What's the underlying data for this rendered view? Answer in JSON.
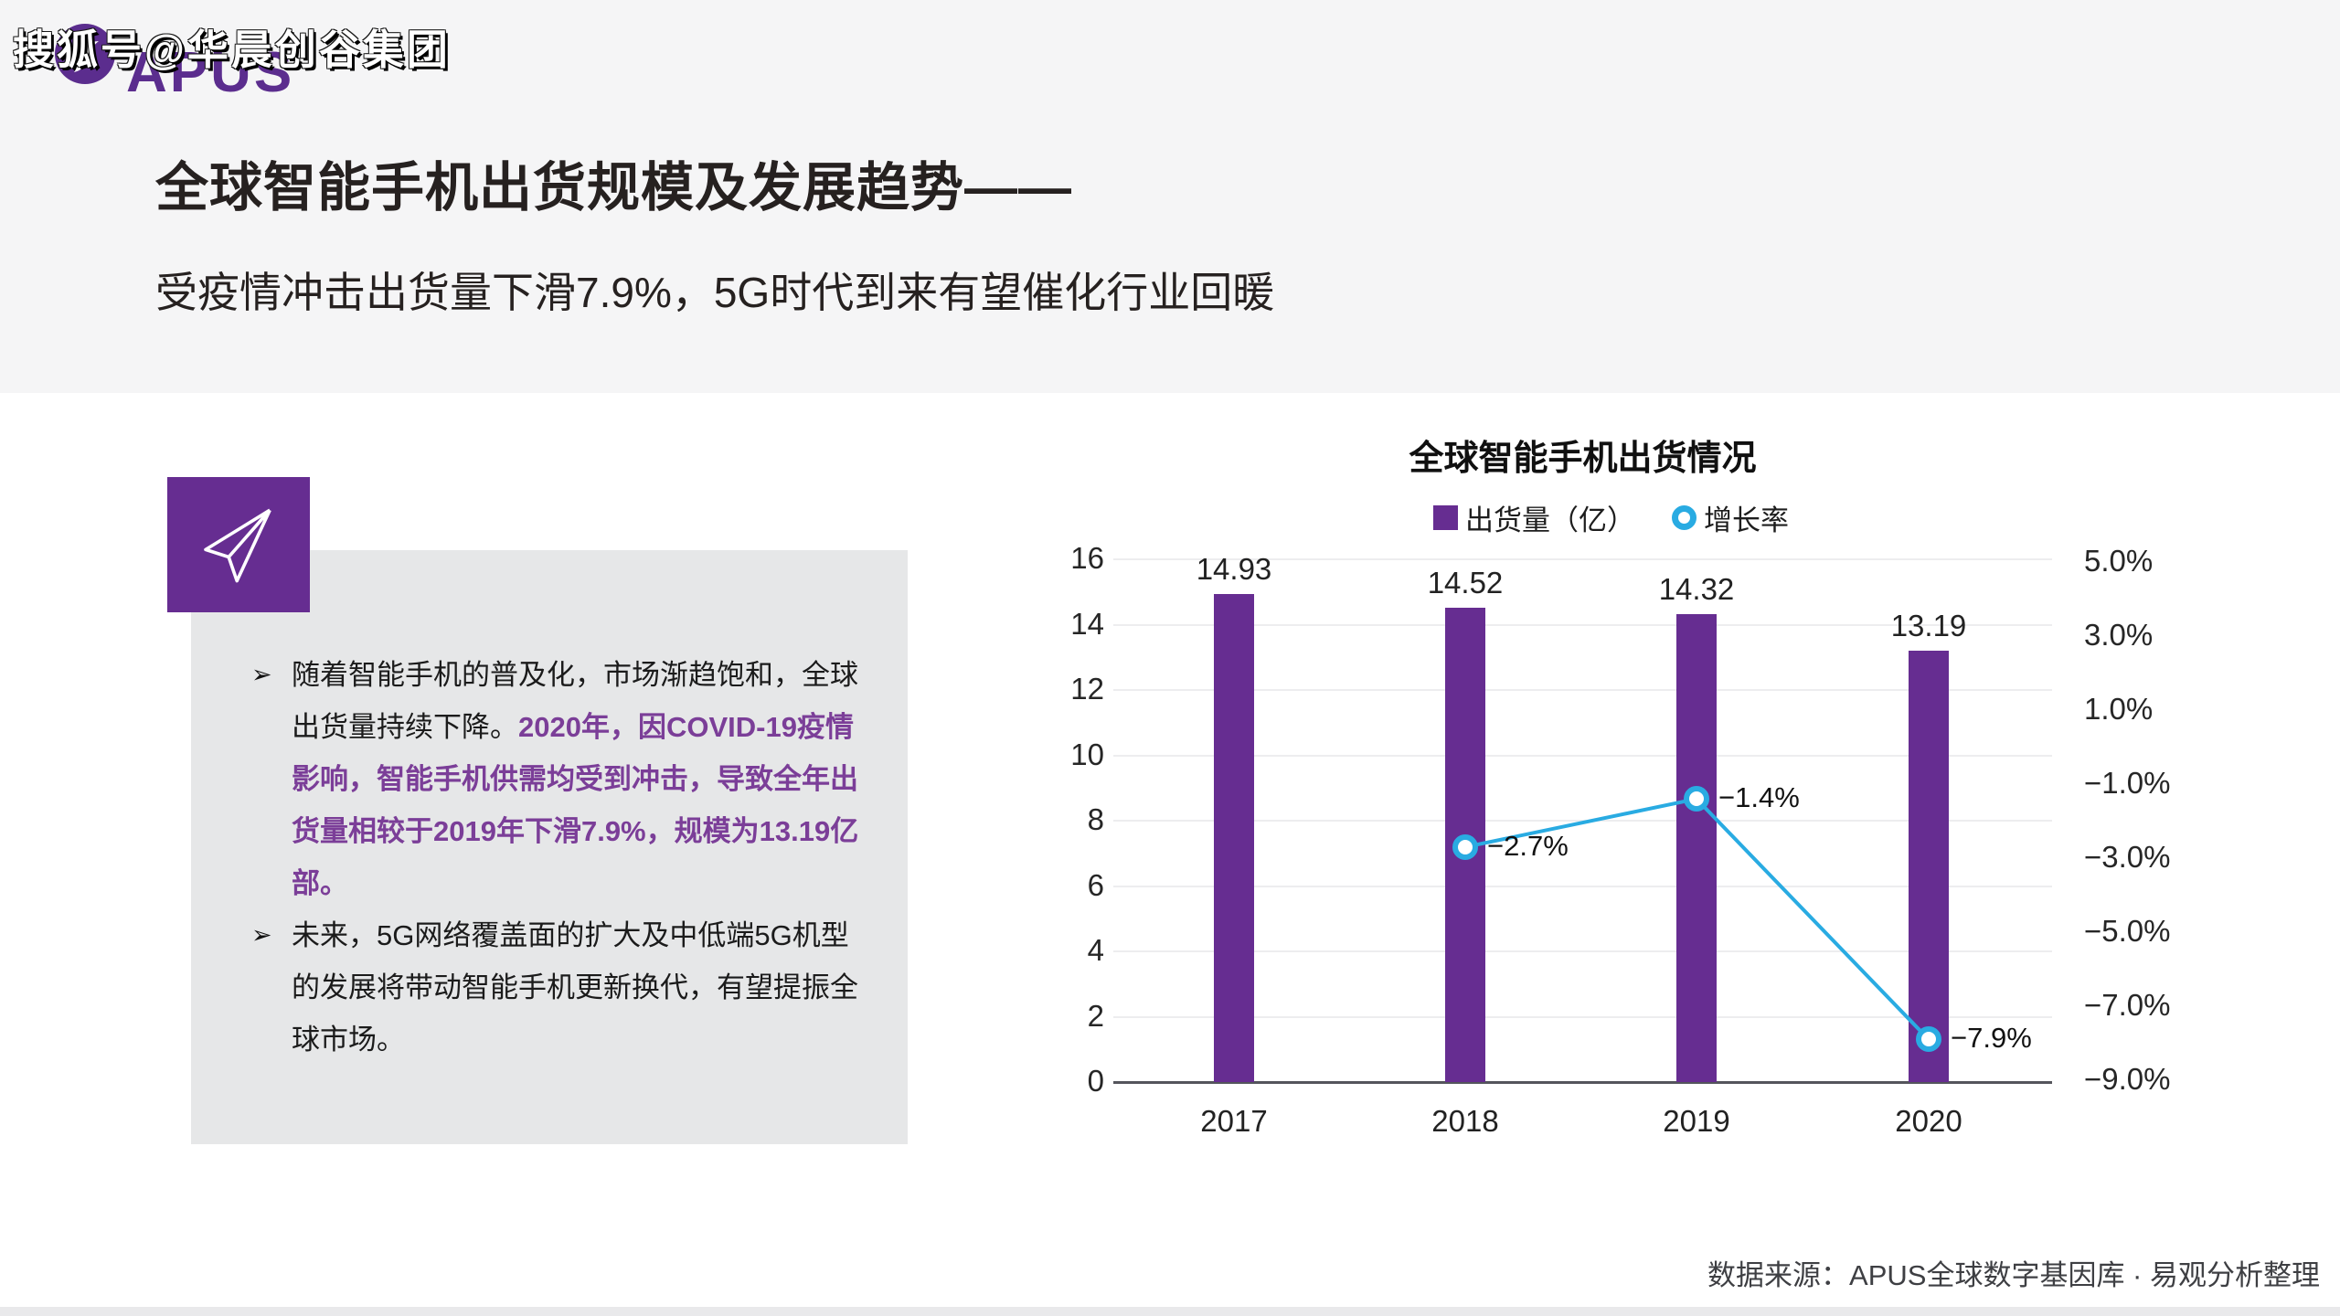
{
  "watermark": "搜狐号@华晨创谷集团",
  "logo": {
    "brand": "APUS"
  },
  "header": {
    "title": "全球智能手机出货规模及发展趋势——",
    "subtitle": "受疫情冲击出货量下滑7.9%，5G时代到来有望催化行业回暖"
  },
  "insights": {
    "bullet_marker": "➢",
    "bullet1_black": "随着智能手机的普及化，市场渐趋饱和，全球出货量持续下降。",
    "bullet1_purple": "2020年，因COVID-19疫情影响，智能手机供需均受到冲击，导致全年出货量相较于2019年下滑7.9%，规模为13.19亿部。",
    "bullet2": "未来，5G网络覆盖面的扩大及中低端5G机型的发展将带动智能手机更新换代，有望提振全球市场。"
  },
  "chart_data": {
    "type": "bar",
    "title": "全球智能手机出货情况",
    "categories": [
      "2017",
      "2018",
      "2019",
      "2020"
    ],
    "series": [
      {
        "name": "出货量（亿）",
        "type": "bar",
        "color": "#662d91",
        "values": [
          14.93,
          14.52,
          14.32,
          13.19
        ],
        "labels": [
          "14.93",
          "14.52",
          "14.32",
          "13.19"
        ]
      },
      {
        "name": "增长率",
        "type": "line",
        "color": "#29abe2",
        "values": [
          null,
          -2.7,
          -1.4,
          -7.9
        ],
        "labels": [
          null,
          "−2.7%",
          "−1.4%",
          "−7.9%"
        ]
      }
    ],
    "left_axis": {
      "min": 0,
      "max": 16,
      "step": 2,
      "ticks": [
        "16",
        "14",
        "12",
        "10",
        "8",
        "6",
        "4",
        "2",
        "0"
      ]
    },
    "right_axis": {
      "min": -9,
      "max": 5,
      "step": 2,
      "ticks": [
        "5.0%",
        "3.0%",
        "1.0%",
        "−1.0%",
        "−3.0%",
        "−5.0%",
        "−7.0%",
        "−9.0%"
      ],
      "tick_values": [
        5,
        3,
        1,
        -1,
        -3,
        -5,
        -7,
        -9
      ]
    },
    "grid": true,
    "legend_position": "top"
  },
  "footer": {
    "source": "数据来源：APUS全球数字基因库 · 易观分析整理"
  },
  "colors": {
    "purple": "#662d91",
    "purple_text": "#7b3e98",
    "cyan": "#29abe2",
    "box_gray": "#e6e7e8",
    "header_bg": "#f5f5f6",
    "axis_line": "#54555c",
    "grid_line": "#ededef"
  }
}
